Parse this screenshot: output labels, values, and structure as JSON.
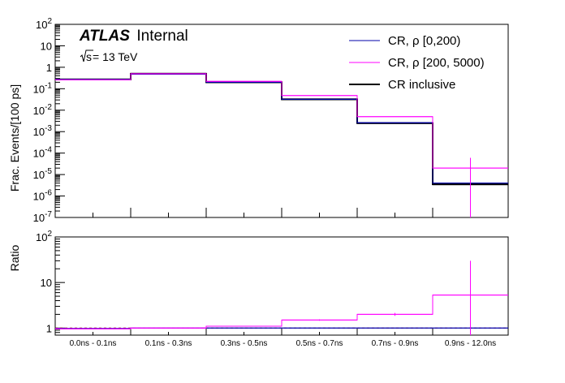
{
  "chart_data": [
    {
      "type": "line",
      "step": true,
      "yscale": "log",
      "ylabel": "Frac. Events/[100 ps]",
      "ylim": [
        1e-07,
        100
      ],
      "y_ticks": [
        {
          "value": 1e-07,
          "base": "10",
          "exp": "-7"
        },
        {
          "value": 1e-06,
          "base": "10",
          "exp": "-6"
        },
        {
          "value": 1e-05,
          "base": "10",
          "exp": "-5"
        },
        {
          "value": 0.0001,
          "base": "10",
          "exp": "-4"
        },
        {
          "value": 0.001,
          "base": "10",
          "exp": "-3"
        },
        {
          "value": 0.01,
          "base": "10",
          "exp": "-2"
        },
        {
          "value": 0.1,
          "base": "10",
          "exp": "-1"
        },
        {
          "value": 1,
          "base": "1",
          "exp": ""
        },
        {
          "value": 10,
          "base": "10",
          "exp": ""
        },
        {
          "value": 100,
          "base": "10",
          "exp": "2"
        }
      ],
      "categories": [
        "0.0ns - 0.1ns",
        "0.1ns - 0.3ns",
        "0.3ns - 0.5ns",
        "0.5ns - 0.7ns",
        "0.7ns - 0.9ns",
        "0.9ns - 12.0ns"
      ],
      "series": [
        {
          "name": "CR inclusive",
          "color": "#000000",
          "values": [
            0.27,
            0.5,
            0.2,
            0.032,
            0.0025,
            3.5e-06
          ],
          "err_low": [
            null,
            null,
            null,
            null,
            null,
            1.5e-06
          ],
          "err_high": [
            null,
            null,
            null,
            null,
            null,
            5e-06
          ]
        },
        {
          "name": "CR, ρ [0,200)",
          "color": "#0000aa",
          "values": [
            0.27,
            0.48,
            0.2,
            0.032,
            0.0026,
            4e-06
          ],
          "err_low": [
            null,
            null,
            null,
            null,
            null,
            null
          ],
          "err_high": [
            null,
            null,
            null,
            null,
            null,
            null
          ]
        },
        {
          "name": "CR, ρ [200, 5000)",
          "color": "#ff00ff",
          "values": [
            0.26,
            0.5,
            0.22,
            0.048,
            0.005,
            2e-05
          ],
          "err_low": [
            null,
            null,
            null,
            null,
            null,
            1e-07
          ],
          "err_high": [
            null,
            null,
            null,
            null,
            null,
            6e-05
          ]
        }
      ],
      "legend": {
        "placement": "top-right",
        "entries": [
          "CR, ρ [0,200)",
          "CR, ρ [200, 5000)",
          "CR inclusive"
        ]
      },
      "annotation": {
        "experiment": "ATLAS",
        "status": "Internal",
        "energy_sqrt": "s",
        "energy_value": " = 13 TeV"
      }
    },
    {
      "type": "line",
      "step": true,
      "yscale": "log",
      "ylabel": "Ratio",
      "ylim": [
        0.7,
        100
      ],
      "y_ticks": [
        {
          "value": 1,
          "base": "1",
          "exp": ""
        },
        {
          "value": 10,
          "base": "10",
          "exp": ""
        },
        {
          "value": 100,
          "base": "10",
          "exp": "2"
        }
      ],
      "reference_line": 1,
      "series": [
        {
          "name": "CR, ρ [0,200)",
          "color": "#0000aa",
          "values": [
            0.98,
            1.0,
            1.0,
            1.0,
            1.0,
            1.0
          ],
          "err_low": [
            null,
            null,
            null,
            null,
            null,
            null
          ],
          "err_high": [
            null,
            null,
            null,
            null,
            null,
            null
          ]
        },
        {
          "name": "CR, ρ [200, 5000)",
          "color": "#ff00ff",
          "values": [
            0.96,
            1.0,
            1.1,
            1.5,
            2.0,
            5.3
          ],
          "err_low": [
            null,
            null,
            null,
            1.45,
            1.85,
            0.7
          ],
          "err_high": [
            null,
            null,
            null,
            1.55,
            2.15,
            30
          ]
        }
      ]
    }
  ]
}
